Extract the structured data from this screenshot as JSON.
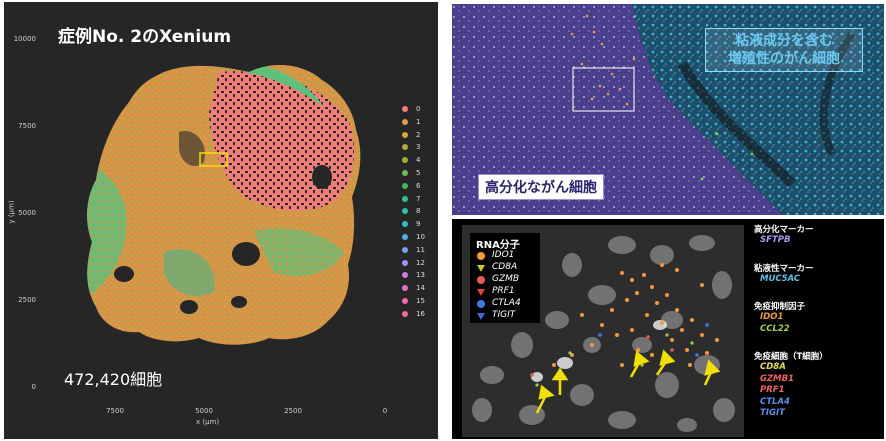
{
  "left": {
    "title": "症例No. 2のXenium",
    "cell_count": "472,420細胞",
    "ylabel": "y (μm)",
    "xlabel": "x (μm)",
    "y_ticks": [
      "10000",
      "7500",
      "5000",
      "2500",
      "0"
    ],
    "x_ticks": [
      "7500",
      "5000",
      "2500",
      "0"
    ],
    "legend": [
      {
        "label": "0",
        "color": "#f07f76"
      },
      {
        "label": "1",
        "color": "#e39a4b"
      },
      {
        "label": "2",
        "color": "#d6a83a"
      },
      {
        "label": "3",
        "color": "#b2a83b"
      },
      {
        "label": "4",
        "color": "#9cb23e"
      },
      {
        "label": "5",
        "color": "#6dbb4c"
      },
      {
        "label": "6",
        "color": "#3fba5f"
      },
      {
        "label": "7",
        "color": "#36bd93"
      },
      {
        "label": "8",
        "color": "#35bfb3"
      },
      {
        "label": "9",
        "color": "#36bcd2"
      },
      {
        "label": "10",
        "color": "#4cb0e8"
      },
      {
        "label": "11",
        "color": "#7d9ff0"
      },
      {
        "label": "12",
        "color": "#a88ff0"
      },
      {
        "label": "13",
        "color": "#c97fe8"
      },
      {
        "label": "14",
        "color": "#e070d6"
      },
      {
        "label": "15",
        "color": "#ef6cb5"
      },
      {
        "label": "16",
        "color": "#f2708f"
      }
    ]
  },
  "right_top": {
    "label_mucinous": "粘液成分を含む\n増殖性のがん細胞",
    "label_differentiated": "高分化ながん細胞"
  },
  "right_bottom": {
    "rna_title": "RNA分子",
    "rna_legend": [
      {
        "label": "IDO1",
        "symbol": "circle",
        "color": "#f39a3a"
      },
      {
        "label": "CD8A",
        "symbol": "triangle-down",
        "color": "#c8c830"
      },
      {
        "label": "GZMB",
        "symbol": "circle",
        "color": "#e85a5a"
      },
      {
        "label": "PRF1",
        "symbol": "triangle-down",
        "color": "#e04040"
      },
      {
        "label": "CTLA4",
        "symbol": "circle",
        "color": "#3a7de0"
      },
      {
        "label": "TIGIT",
        "symbol": "triangle-down",
        "color": "#3a6ad8"
      }
    ]
  },
  "markers": [
    {
      "heading": "高分化マーカー",
      "items": [
        {
          "label": "SFTPB",
          "color": "#a99af0"
        }
      ]
    },
    {
      "heading": "粘液性マーカー",
      "items": [
        {
          "label": "MUC5AC",
          "color": "#5cc0e8"
        }
      ]
    },
    {
      "heading": "免疫抑制因子",
      "items": [
        {
          "label": "IDO1",
          "color": "#f39a3a"
        },
        {
          "label": "CCL22",
          "color": "#9ad04a"
        }
      ]
    },
    {
      "heading": "免疫細胞（T細胞）",
      "items": [
        {
          "label": "CD8A",
          "color": "#e8e04a"
        },
        {
          "label": "GZMB1",
          "color": "#f06060"
        },
        {
          "label": "PRF1",
          "color": "#f06060"
        },
        {
          "label": "CTLA4",
          "color": "#5a8ef0"
        },
        {
          "label": "TIGIT",
          "color": "#5a8ef0"
        }
      ]
    }
  ]
}
